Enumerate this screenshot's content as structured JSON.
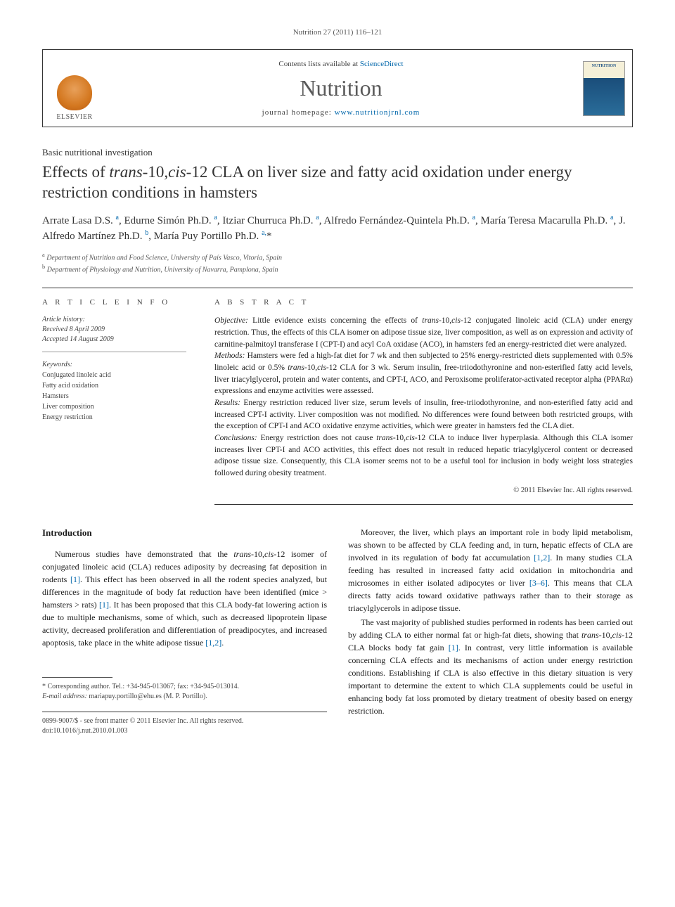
{
  "citation": "Nutrition 27 (2011) 116–121",
  "header": {
    "contents_prefix": "Contents lists available at ",
    "contents_link": "ScienceDirect",
    "journal": "Nutrition",
    "homepage_prefix": "journal homepage: ",
    "homepage_link": "www.nutritionjrnl.com",
    "publisher": "ELSEVIER"
  },
  "article_type": "Basic nutritional investigation",
  "title_parts": {
    "pre": "Effects of ",
    "ital1": "trans",
    "mid1": "-10,",
    "ital2": "cis",
    "post": "-12 CLA on liver size and fatty acid oxidation under energy restriction conditions in hamsters"
  },
  "authors_html": "Arrate Lasa D.S. <sup>a</sup>, Edurne Simón Ph.D. <sup>a</sup>, Itziar Churruca Ph.D. <sup>a</sup>, Alfredo Fernández-Quintela Ph.D. <sup>a</sup>, María Teresa Macarulla Ph.D. <sup>a</sup>, J. Alfredo Martínez Ph.D. <sup>b</sup>, María Puy Portillo Ph.D. <sup>a,</sup><span class='star'>*</span>",
  "affiliations": [
    {
      "sup": "a",
      "text": "Department of Nutrition and Food Science, University of País Vasco, Vitoria, Spain"
    },
    {
      "sup": "b",
      "text": "Department of Physiology and Nutrition, University of Navarra, Pamplona, Spain"
    }
  ],
  "article_info_head": "A R T I C L E   I N F O",
  "abstract_head": "A B S T R A C T",
  "history": {
    "label": "Article history:",
    "received": "Received 8 April 2009",
    "accepted": "Accepted 14 August 2009"
  },
  "keywords": {
    "label": "Keywords:",
    "items": [
      "Conjugated linoleic acid",
      "Fatty acid oxidation",
      "Hamsters",
      "Liver composition",
      "Energy restriction"
    ]
  },
  "abstract": {
    "objective_label": "Objective:",
    "objective": " Little evidence exists concerning the effects of trans-10,cis-12 conjugated linoleic acid (CLA) under energy restriction. Thus, the effects of this CLA isomer on adipose tissue size, liver composition, as well as on expression and activity of carnitine-palmitoyl transferase I (CPT-I) and acyl CoA oxidase (ACO), in hamsters fed an energy-restricted diet were analyzed.",
    "methods_label": "Methods:",
    "methods": " Hamsters were fed a high-fat diet for 7 wk and then subjected to 25% energy-restricted diets supplemented with 0.5% linoleic acid or 0.5% trans-10,cis-12 CLA for 3 wk. Serum insulin, free-triiodothyronine and non-esterified fatty acid levels, liver triacylglycerol, protein and water contents, and CPT-I, ACO, and Peroxisome proliferator-activated receptor alpha (PPARα) expressions and enzyme activities were assessed.",
    "results_label": "Results:",
    "results": " Energy restriction reduced liver size, serum levels of insulin, free-triiodothyronine, and non-esterified fatty acid and increased CPT-I activity. Liver composition was not modified. No differences were found between both restricted groups, with the exception of CPT-I and ACO oxidative enzyme activities, which were greater in hamsters fed the CLA diet.",
    "conclusions_label": "Conclusions:",
    "conclusions": " Energy restriction does not cause trans-10,cis-12 CLA to induce liver hyperplasia. Although this CLA isomer increases liver CPT-I and ACO activities, this effect does not result in reduced hepatic triacylglycerol content or decreased adipose tissue size. Consequently, this CLA isomer seems not to be a useful tool for inclusion in body weight loss strategies followed during obesity treatment."
  },
  "copyright": "© 2011 Elsevier Inc. All rights reserved.",
  "intro_head": "Introduction",
  "intro_paragraphs": [
    "Numerous studies have demonstrated that the <span class='ital'>trans</span>-10,<span class='ital'>cis</span>-12 isomer of conjugated linoleic acid (CLA) reduces adiposity by decreasing fat deposition in rodents <span class='ref'>[1]</span>. This effect has been observed in all the rodent species analyzed, but differences in the magnitude of body fat reduction have been identified (mice &gt; hamsters &gt; rats) <span class='ref'>[1]</span>. It has been proposed that this CLA body-fat lowering action is due to multiple mechanisms, some of which, such as decreased lipoprotein lipase activity, decreased proliferation and differentiation of preadipocytes, and increased apoptosis, take place in the white adipose tissue <span class='ref'>[1,2]</span>."
  ],
  "col2_paragraphs": [
    "Moreover, the liver, which plays an important role in body lipid metabolism, was shown to be affected by CLA feeding and, in turn, hepatic effects of CLA are involved in its regulation of body fat accumulation <span class='ref'>[1,2]</span>. In many studies CLA feeding has resulted in increased fatty acid oxidation in mitochondria and microsomes in either isolated adipocytes or liver <span class='ref'>[3–6]</span>. This means that CLA directs fatty acids toward oxidative pathways rather than to their storage as triacylglycerols in adipose tissue.",
    "The vast majority of published studies performed in rodents has been carried out by adding CLA to either normal fat or high-fat diets, showing that <span class='ital'>trans</span>-10,<span class='ital'>cis</span>-12 CLA blocks body fat gain <span class='ref'>[1]</span>. In contrast, very little information is available concerning CLA effects and its mechanisms of action under energy restriction conditions. Establishing if CLA is also effective in this dietary situation is very important to determine the extent to which CLA supplements could be useful in enhancing body fat loss promoted by dietary treatment of obesity based on energy restriction."
  ],
  "footnote": {
    "corr": "* Corresponding author. Tel.: +34-945-013067; fax: +34-945-013014.",
    "email_label": "E-mail address:",
    "email": " mariapuy.portillo@ehu.es (M. P. Portillo)."
  },
  "footer": {
    "line1": "0899-9007/$ - see front matter © 2011 Elsevier Inc. All rights reserved.",
    "line2": "doi:10.1016/j.nut.2010.01.003"
  }
}
